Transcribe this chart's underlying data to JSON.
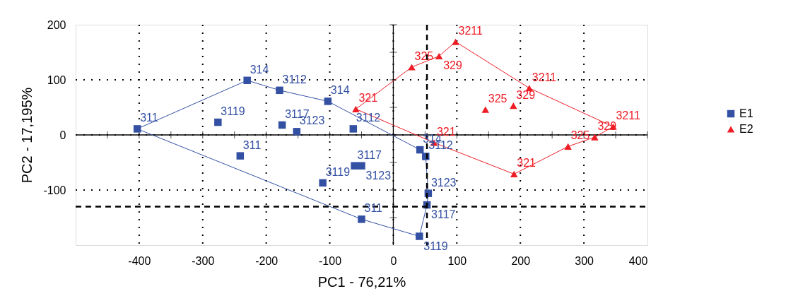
{
  "chart_data": {
    "type": "scatter",
    "xlabel": "PC1 - 76,21%",
    "ylabel": "PC2 - 17,195%",
    "xlim": [
      -500,
      400
    ],
    "ylim": [
      -200,
      200
    ],
    "xticks": [
      {
        "value": -450,
        "label": null
      },
      -400,
      {
        "value": -350,
        "label": null
      },
      -300,
      {
        "value": -250,
        "label": null
      },
      -200,
      {
        "value": -150,
        "label": null
      },
      -100,
      {
        "value": -50,
        "label": null
      },
      0,
      {
        "value": 50,
        "label": null
      },
      100,
      {
        "value": 150,
        "label": null
      },
      200,
      {
        "value": 250,
        "label": null
      },
      300,
      {
        "value": 350,
        "label": null
      },
      400
    ],
    "yticks": [
      {
        "value": -150,
        "label": null
      },
      -100,
      {
        "value": -50,
        "label": null
      },
      0,
      {
        "value": 50,
        "label": null
      },
      100,
      {
        "value": 150,
        "label": null
      },
      200
    ],
    "grid": true,
    "legend": "right",
    "series": [
      {
        "name": "E1",
        "color": "#3350a3",
        "marker": "square",
        "x": [
          -403,
          -230,
          -179,
          -103,
          -276,
          -175,
          -152,
          -63,
          -241,
          -111,
          -50,
          -61,
          -50,
          42,
          51,
          55,
          53,
          41
        ],
        "values": [
          11,
          99,
          81,
          61,
          23,
          18,
          6,
          11,
          -38,
          -87,
          -153,
          -56,
          -56,
          -27,
          -39,
          -106,
          -127,
          -184
        ]
      },
      {
        "name": "E2",
        "color": "#ee1c25",
        "marker": "triangle",
        "x": [
          -59,
          29,
          72,
          98,
          214,
          145,
          189,
          346,
          317,
          275,
          190,
          64
        ],
        "values": [
          47,
          123,
          143,
          169,
          85,
          46,
          53,
          15,
          -4,
          -21,
          -71,
          -14
        ]
      },
      {
        "type": "line",
        "color": "#3350a3",
        "marker": "none",
        "x": [
          -403,
          -230,
          -179,
          -103,
          42,
          51,
          55,
          53,
          41
        ],
        "values": [
          11,
          99,
          81,
          61,
          -27,
          -39,
          -106,
          -127,
          -184
        ]
      },
      {
        "type": "line",
        "color": "#3350a3",
        "marker": "none",
        "x": [
          -403,
          -50,
          41
        ],
        "values": [
          11,
          -153,
          -184
        ]
      },
      {
        "type": "line",
        "color": "#ee1c25",
        "marker": "none",
        "x": [
          -59,
          29,
          72,
          98,
          214,
          346
        ],
        "values": [
          47,
          123,
          143,
          169,
          85,
          15
        ]
      },
      {
        "type": "line",
        "color": "#ee1c25",
        "marker": "none",
        "x": [
          -59,
          64,
          190,
          275,
          317,
          346
        ],
        "values": [
          47,
          -14,
          -71,
          -21,
          -4,
          15
        ]
      }
    ],
    "ref_lines": [
      {
        "axis": "x",
        "value": 53,
        "line_style": "dashed"
      },
      {
        "axis": "y",
        "value": -130,
        "line_style": "dashed"
      }
    ],
    "annotations": [
      {
        "text": "311",
        "x": -403,
        "y": 11
      },
      {
        "text": "314",
        "x": -230,
        "y": 99
      },
      {
        "text": "3112",
        "x": -179,
        "y": 81
      },
      {
        "text": "314",
        "x": -103,
        "y": 61
      },
      {
        "text": "3119",
        "x": -276,
        "y": 23
      },
      {
        "text": "3117",
        "x": -175,
        "y": 18
      },
      {
        "text": "3123",
        "x": -152,
        "y": 6
      },
      {
        "text": "3112",
        "x": -63,
        "y": 11
      },
      {
        "text": "311",
        "x": -241,
        "y": -38
      },
      {
        "text": "3119",
        "x": -111,
        "y": -87
      },
      {
        "text": "311",
        "x": -50,
        "y": -153
      },
      {
        "text": "3117",
        "x": -61,
        "y": -56
      },
      {
        "text": "3123",
        "x": -50,
        "y": -56
      },
      {
        "text": "314",
        "x": 42,
        "y": -27
      },
      {
        "text": "3112",
        "x": 51,
        "y": -39
      },
      {
        "text": "3123",
        "x": 55,
        "y": -106
      },
      {
        "text": "3117",
        "x": 53,
        "y": -127
      },
      {
        "text": "3119",
        "x": 41,
        "y": -184
      },
      {
        "text": "321",
        "x": -59,
        "y": 47
      },
      {
        "text": "325",
        "x": 29,
        "y": 123
      },
      {
        "text": "329",
        "x": 72,
        "y": 143
      },
      {
        "text": "3211",
        "x": 98,
        "y": 169
      },
      {
        "text": "3211",
        "x": 214,
        "y": 85
      },
      {
        "text": "325",
        "x": 145,
        "y": 46
      },
      {
        "text": "329",
        "x": 189,
        "y": 53
      },
      {
        "text": "3211",
        "x": 346,
        "y": 15
      },
      {
        "text": "329",
        "x": 317,
        "y": -4
      },
      {
        "text": "325",
        "x": 275,
        "y": -21
      },
      {
        "text": "321",
        "x": 190,
        "y": -71
      },
      {
        "text": "321",
        "x": 64,
        "y": -14
      }
    ]
  }
}
